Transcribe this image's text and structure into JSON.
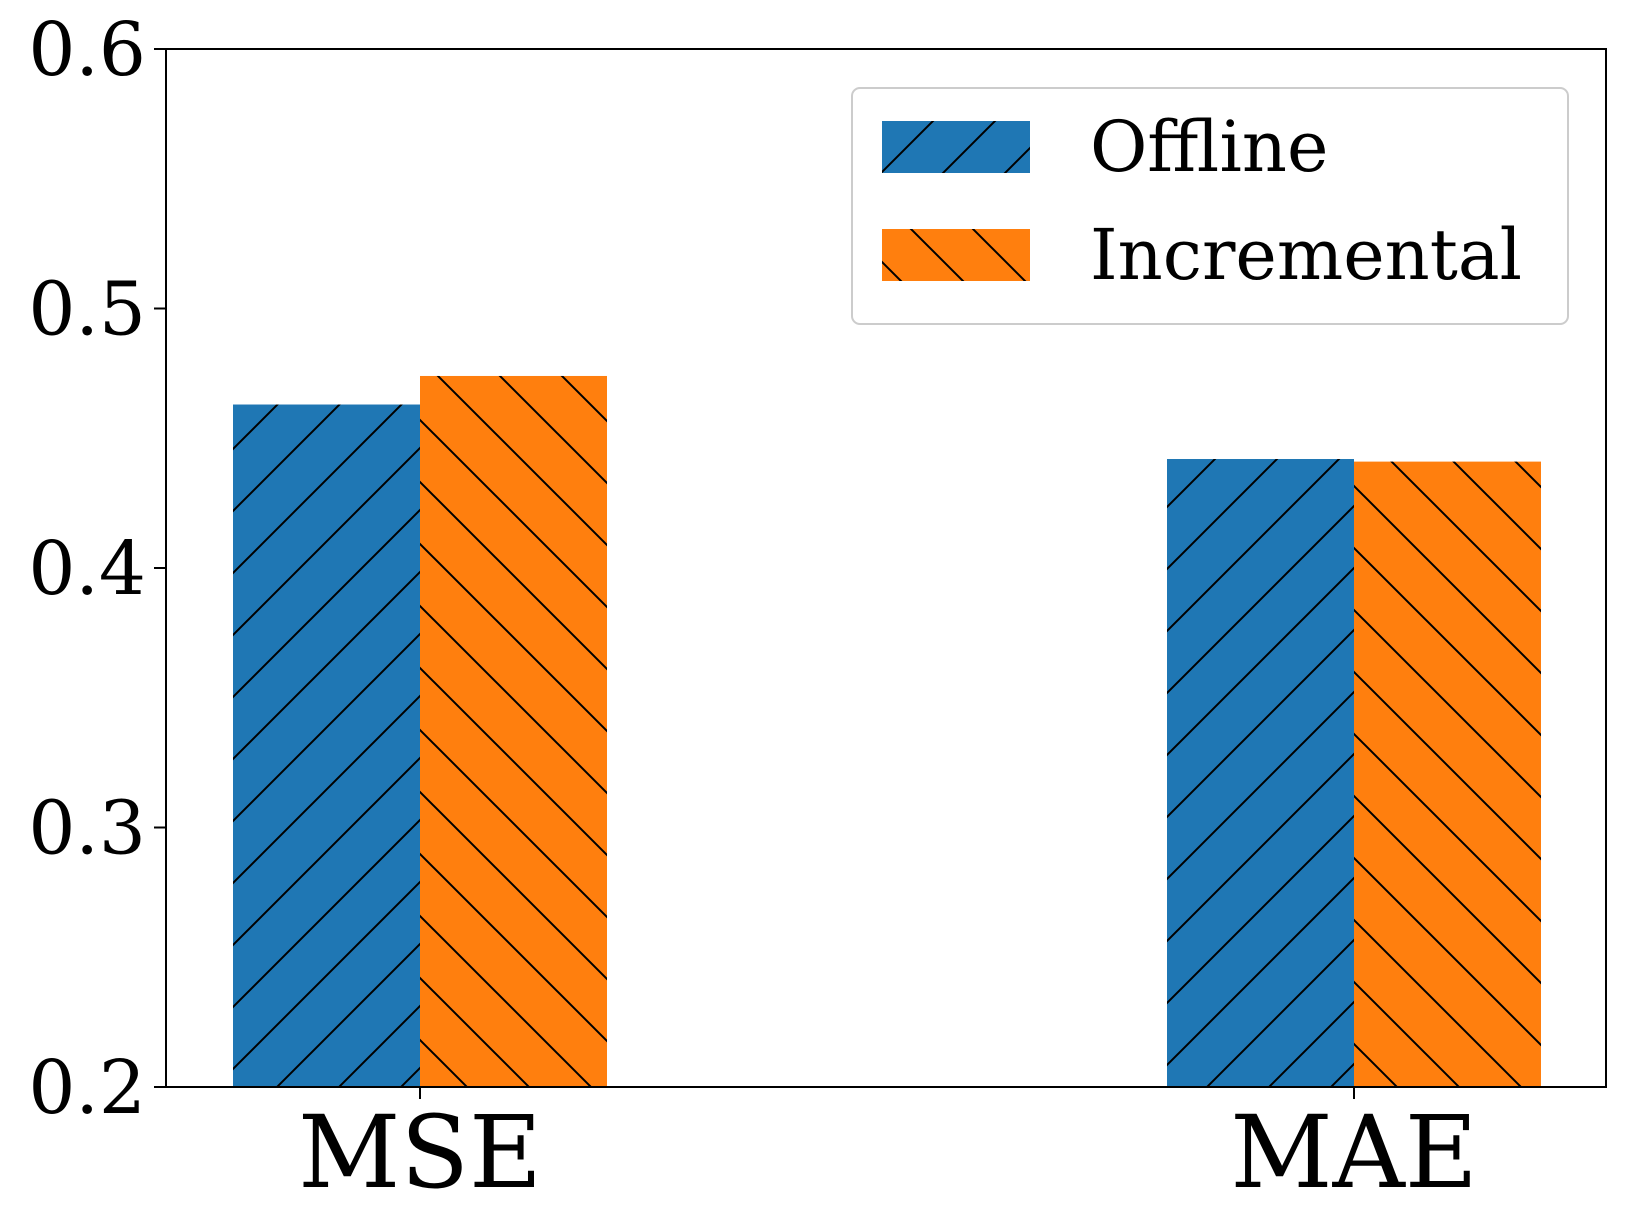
{
  "chart_data": {
    "type": "bar",
    "categories": [
      "MSE",
      "MAE"
    ],
    "series": [
      {
        "name": "Offline",
        "values": [
          0.463,
          0.442
        ],
        "color": "#1f77b4",
        "hatch": "/"
      },
      {
        "name": "Incremental",
        "values": [
          0.474,
          0.441
        ],
        "color": "#ff7f0e",
        "hatch": "\\"
      }
    ],
    "ylim": [
      0.2,
      0.6
    ],
    "yticks": [
      0.2,
      0.3,
      0.4,
      0.5,
      0.6
    ],
    "ytick_labels": [
      "0.2",
      "0.3",
      "0.4",
      "0.5",
      "0.6"
    ],
    "title": "",
    "xlabel": "",
    "ylabel": "",
    "grid": false,
    "legend_position": "top-right"
  }
}
